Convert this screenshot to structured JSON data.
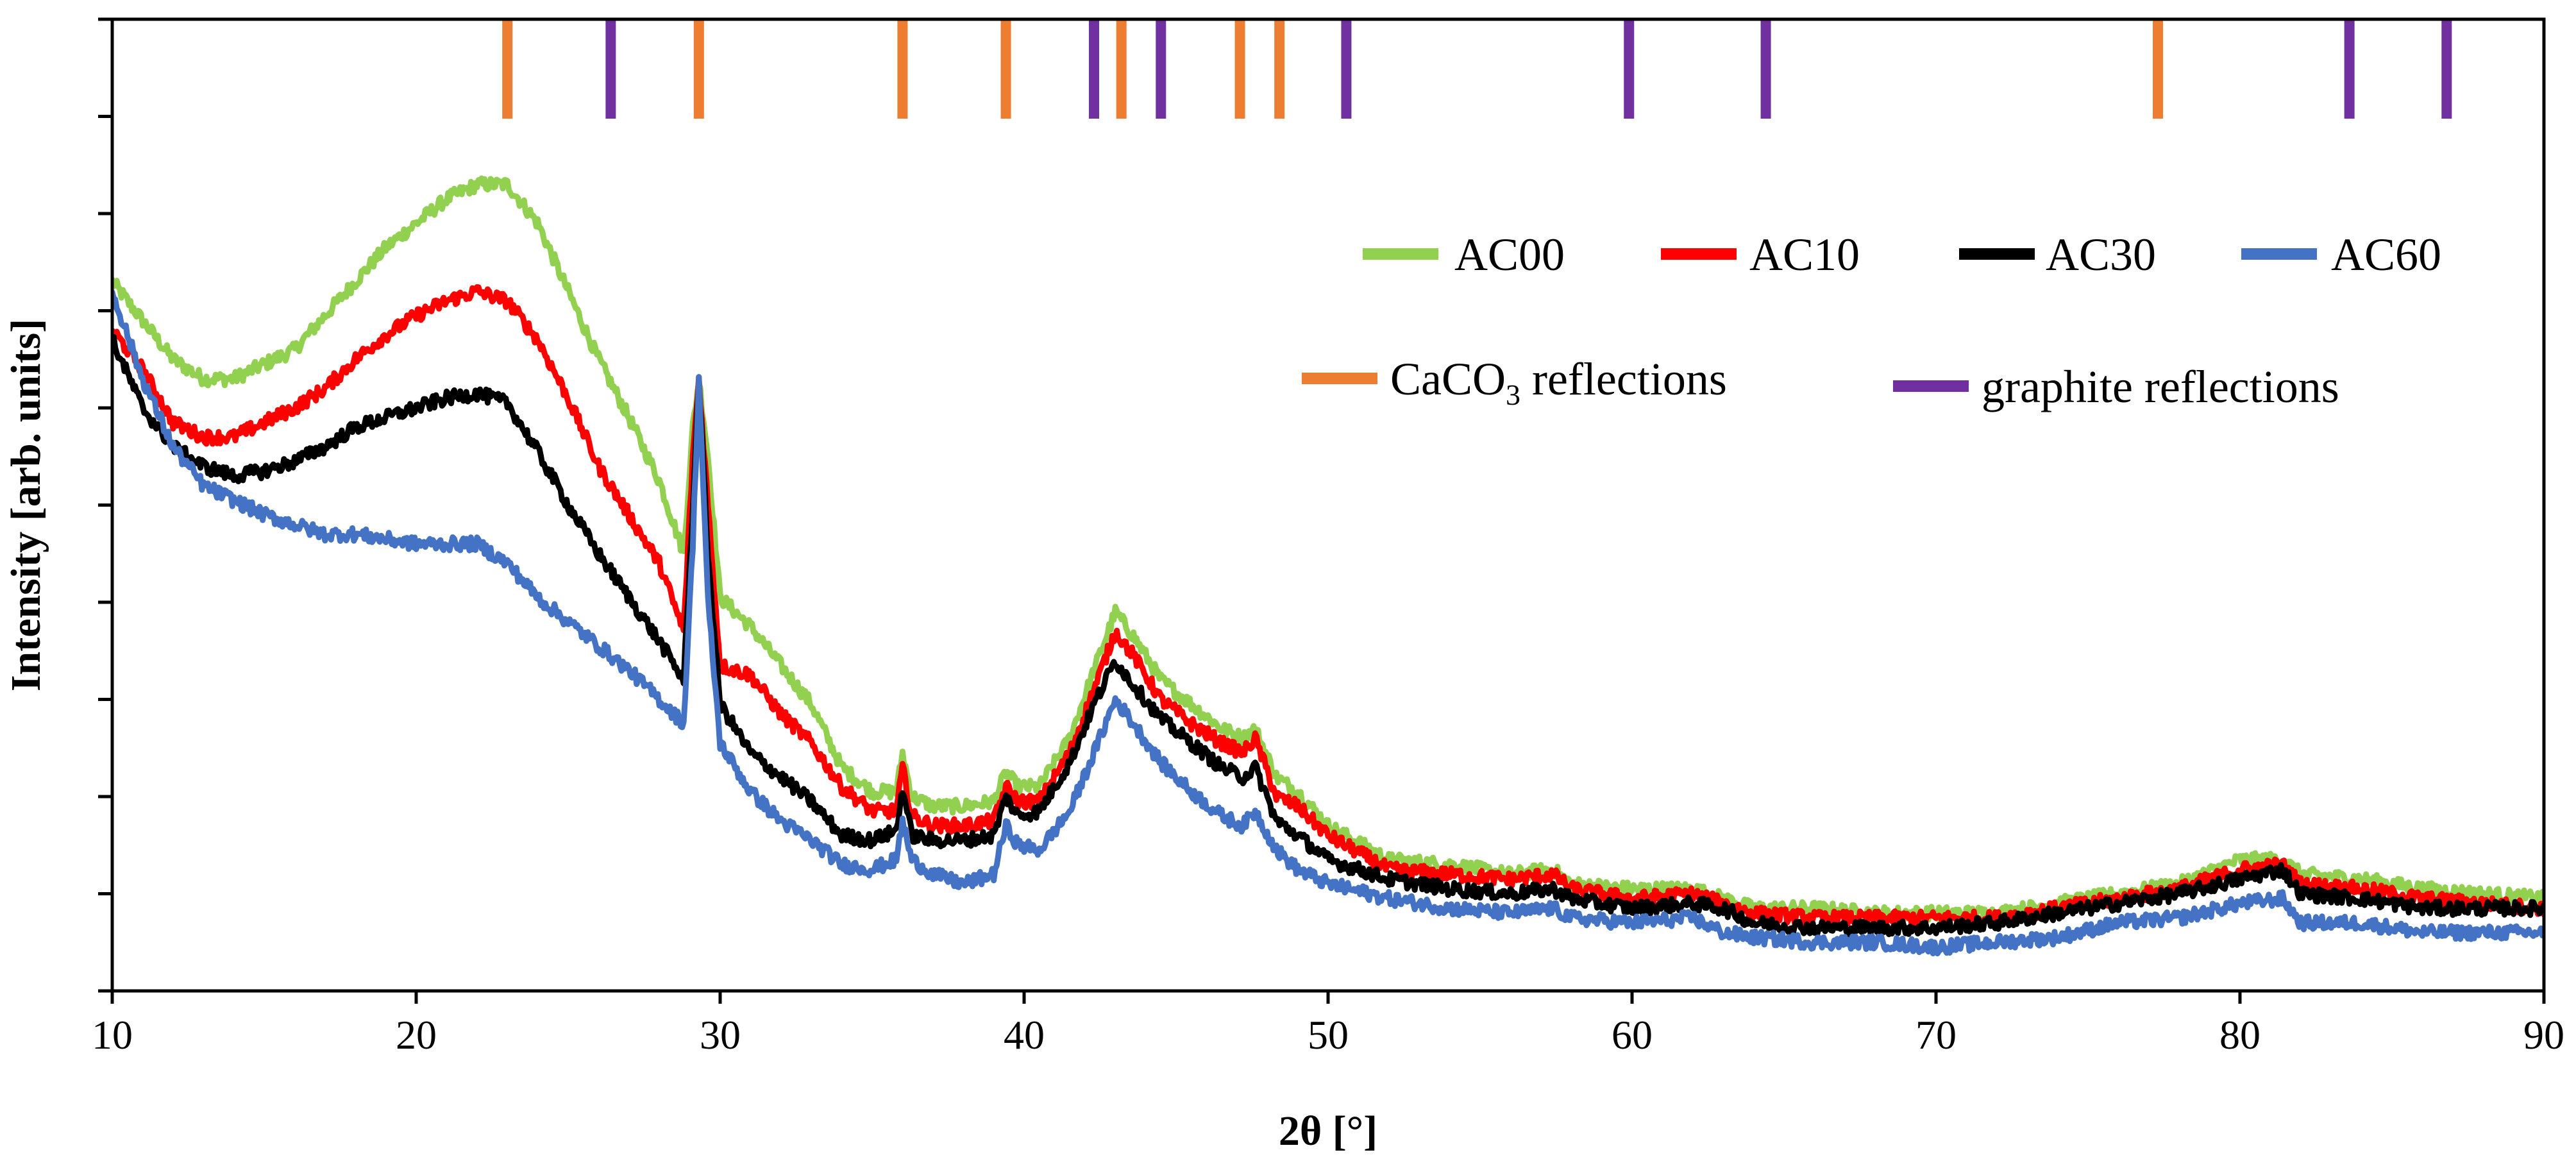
{
  "chart_data": {
    "type": "line",
    "title": "",
    "xlabel": "2θ [°]",
    "ylabel": "Intensity [arb. units]",
    "xlim": [
      10,
      90
    ],
    "ylim": [
      0,
      10
    ],
    "x_ticks": [
      "10",
      "20",
      "30",
      "40",
      "50",
      "60",
      "70",
      "80",
      "90"
    ],
    "y_tick_count": 10,
    "grid": false,
    "series": [
      {
        "name": "AC00",
        "color": "#92d050",
        "x": [
          10,
          11,
          12,
          13,
          14,
          15,
          16,
          17,
          18,
          19,
          20,
          21,
          22,
          23,
          24,
          25,
          26,
          27,
          28,
          28.8,
          29.1,
          29.3,
          29.6,
          30,
          31,
          32,
          33,
          34,
          35,
          35.8,
          36,
          36.3,
          37,
          38,
          39,
          39.4,
          39.8,
          40.5,
          41.5,
          42.3,
          43,
          43.6,
          44.5,
          45.5,
          46.5,
          47.2,
          47.6,
          48.3,
          49,
          50,
          52,
          54,
          56,
          57.4,
          58,
          60,
          62,
          63,
          64,
          66,
          68,
          70,
          72,
          74,
          76,
          78,
          80,
          81.4,
          82,
          84,
          86,
          88,
          90
        ],
        "y": [
          7.3,
          6.9,
          6.5,
          6.3,
          6.3,
          6.45,
          6.6,
          6.95,
          7.3,
          7.65,
          7.9,
          8.15,
          8.3,
          8.3,
          7.9,
          7.2,
          6.5,
          5.9,
          5.25,
          4.5,
          5.8,
          6.3,
          5.5,
          4.05,
          3.75,
          3.35,
          2.95,
          2.3,
          2.05,
          2.05,
          2.45,
          2.0,
          1.9,
          1.9,
          1.95,
          2.25,
          2.1,
          2.1,
          2.6,
          3.3,
          3.9,
          3.65,
          3.2,
          2.95,
          2.7,
          2.6,
          2.7,
          2.2,
          2.05,
          1.7,
          1.35,
          1.3,
          1.2,
          1.25,
          1.1,
          1.05,
          1.05,
          0.95,
          0.85,
          0.85,
          0.8,
          0.8,
          0.8,
          0.9,
          1.0,
          1.1,
          1.35,
          1.35,
          1.2,
          1.15,
          1.05,
          1.0,
          0.95
        ]
      },
      {
        "name": "AC10",
        "color": "#ff0000",
        "x": [
          10,
          11,
          12,
          13,
          14,
          15,
          16,
          17,
          18,
          19,
          20,
          21,
          22,
          23,
          24,
          25,
          26,
          27,
          28,
          28.8,
          29.1,
          29.3,
          29.6,
          30,
          31,
          32,
          33,
          34,
          35,
          35.8,
          36,
          36.3,
          37,
          38,
          39,
          39.4,
          39.8,
          40.5,
          41.5,
          42.3,
          43,
          43.6,
          44.5,
          45.5,
          46.5,
          47.2,
          47.6,
          48.3,
          49,
          50,
          52,
          54,
          56,
          57.4,
          58,
          60,
          62,
          63,
          64,
          66,
          68,
          70,
          72,
          74,
          76,
          78,
          80,
          81.4,
          82,
          84,
          86,
          88,
          90
        ],
        "y": [
          6.8,
          6.4,
          5.85,
          5.7,
          5.7,
          5.85,
          6.0,
          6.2,
          6.5,
          6.75,
          6.95,
          7.1,
          7.2,
          7.1,
          6.7,
          6.1,
          5.4,
          4.9,
          4.4,
          3.7,
          5.5,
          6.3,
          5.0,
          3.35,
          3.25,
          2.85,
          2.55,
          2.1,
          1.85,
          1.85,
          2.3,
          1.8,
          1.7,
          1.7,
          1.75,
          2.1,
          1.95,
          1.95,
          2.45,
          3.1,
          3.7,
          3.45,
          3.0,
          2.75,
          2.55,
          2.45,
          2.6,
          2.0,
          1.9,
          1.6,
          1.25,
          1.2,
          1.15,
          1.2,
          1.05,
          0.95,
          1.0,
          0.9,
          0.8,
          0.75,
          0.75,
          0.75,
          0.75,
          0.85,
          0.95,
          1.05,
          1.25,
          1.3,
          1.1,
          1.05,
          0.95,
          0.9,
          0.85
        ]
      },
      {
        "name": "AC30",
        "color": "#000000",
        "x": [
          10,
          11,
          12,
          13,
          14,
          15,
          16,
          17,
          18,
          19,
          20,
          21,
          22,
          23,
          24,
          25,
          26,
          27,
          28,
          28.8,
          29.1,
          29.3,
          29.6,
          30,
          31,
          32,
          33,
          34,
          35,
          35.8,
          36,
          36.3,
          37,
          38,
          39,
          39.4,
          39.8,
          40.5,
          41.5,
          42.3,
          43,
          43.6,
          44.5,
          45.5,
          46.5,
          47.2,
          47.6,
          48.3,
          49,
          50,
          52,
          54,
          56,
          57.4,
          58,
          60,
          62,
          63,
          64,
          66,
          68,
          70,
          72,
          74,
          76,
          78,
          80,
          81.4,
          82,
          84,
          86,
          88,
          90
        ],
        "y": [
          6.7,
          6.0,
          5.6,
          5.4,
          5.3,
          5.35,
          5.45,
          5.6,
          5.8,
          5.9,
          6.0,
          6.1,
          6.15,
          6.05,
          5.55,
          5.0,
          4.5,
          4.05,
          3.6,
          3.2,
          5.0,
          6.3,
          4.5,
          2.95,
          2.45,
          2.2,
          1.95,
          1.6,
          1.55,
          1.65,
          2.1,
          1.6,
          1.55,
          1.55,
          1.6,
          2.0,
          1.8,
          1.85,
          2.35,
          2.95,
          3.4,
          3.15,
          2.8,
          2.55,
          2.3,
          2.2,
          2.3,
          1.75,
          1.6,
          1.35,
          1.15,
          1.05,
          1.0,
          1.05,
          0.95,
          0.85,
          0.9,
          0.85,
          0.7,
          0.65,
          0.65,
          0.65,
          0.7,
          0.8,
          0.9,
          1.0,
          1.15,
          1.25,
          1.0,
          0.95,
          0.85,
          0.85,
          0.85
        ]
      },
      {
        "name": "AC60",
        "color": "#4472c4",
        "x": [
          10,
          11,
          12,
          13,
          14,
          15,
          16,
          17,
          18,
          19,
          20,
          21,
          22,
          23,
          24,
          25,
          26,
          27,
          28,
          28.8,
          29.1,
          29.3,
          29.6,
          30,
          31,
          32,
          33,
          34,
          35,
          35.8,
          36,
          36.3,
          37,
          38,
          39,
          39.4,
          39.8,
          40.5,
          41.5,
          42.3,
          43,
          43.6,
          44.5,
          45.5,
          46.5,
          47.2,
          47.6,
          48.3,
          49,
          50,
          52,
          54,
          56,
          57.4,
          58,
          60,
          62,
          63,
          64,
          66,
          68,
          70,
          72,
          74,
          76,
          78,
          80,
          81.4,
          82,
          84,
          86,
          88,
          90
        ],
        "y": [
          7.2,
          6.3,
          5.6,
          5.2,
          5.05,
          4.9,
          4.8,
          4.7,
          4.7,
          4.65,
          4.6,
          4.6,
          4.6,
          4.4,
          4.05,
          3.8,
          3.55,
          3.3,
          3.0,
          2.75,
          4.6,
          6.3,
          4.0,
          2.55,
          2.05,
          1.75,
          1.55,
          1.3,
          1.25,
          1.35,
          1.75,
          1.35,
          1.2,
          1.1,
          1.2,
          1.7,
          1.5,
          1.45,
          1.85,
          2.45,
          3.0,
          2.75,
          2.35,
          2.05,
          1.8,
          1.7,
          1.85,
          1.45,
          1.25,
          1.1,
          0.95,
          0.85,
          0.8,
          0.85,
          0.75,
          0.7,
          0.75,
          0.6,
          0.55,
          0.5,
          0.5,
          0.45,
          0.5,
          0.55,
          0.7,
          0.75,
          0.9,
          0.95,
          0.7,
          0.7,
          0.6,
          0.6,
          0.6
        ]
      }
    ],
    "reference_markers": [
      {
        "name": "CaCO3 reflections",
        "color": "#ed7d31",
        "positions": [
          23.0,
          29.3,
          36.0,
          39.4,
          43.2,
          47.1,
          48.4,
          77.3
        ]
      },
      {
        "name": "graphite reflections",
        "color": "#7030a0",
        "positions": [
          26.4,
          42.3,
          44.5,
          50.6,
          59.9,
          64.4,
          83.6,
          86.8
        ]
      }
    ],
    "legend": {
      "placement": "top-right",
      "rows": [
        [
          "AC00",
          "AC10",
          "AC30",
          "AC60"
        ],
        [
          "CaCO3 reflections",
          "graphite reflections"
        ]
      ],
      "subscript_label": {
        "base": "CaCO",
        "sub": "3",
        "suffix": " reflections"
      }
    }
  }
}
